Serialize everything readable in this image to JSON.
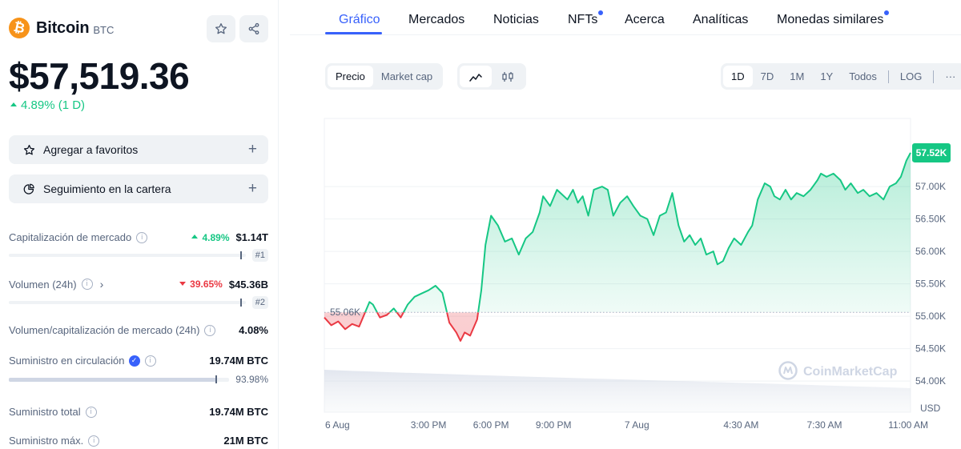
{
  "coin": {
    "name": "Bitcoin",
    "symbol": "BTC",
    "logo_glyph": "₿",
    "price": "$57,519.36",
    "change": "4.89% (1 D)"
  },
  "icons": {
    "star": "star-icon",
    "share": "share-icon",
    "pie": "pie-chart-icon",
    "line": "line-chart-icon",
    "candle": "candlestick-icon"
  },
  "actions": [
    {
      "label": "Agregar a favoritos"
    },
    {
      "label": "Seguimiento en la cartera"
    }
  ],
  "stats": {
    "market_cap": {
      "label": "Capitalización de mercado",
      "pct": "4.89%",
      "value": "$1.14T",
      "rank": "#1",
      "marker": 0.98
    },
    "volume": {
      "label": "Volumen (24h)",
      "pct": "39.65%",
      "value": "$45.36B",
      "rank": "#2",
      "marker": 0.98
    },
    "vol_mcap": {
      "label": "Volumen/capitalización de mercado (24h)",
      "value": "4.08%"
    },
    "circulating": {
      "label": "Suministro en circulación",
      "value": "19.74M BTC",
      "pct": "93.98%",
      "marker": 0.9398
    },
    "total": {
      "label": "Suministro total",
      "value": "19.74M BTC"
    },
    "max": {
      "label": "Suministro máx.",
      "value": "21M BTC"
    }
  },
  "tabs": [
    {
      "label": "Gráfico",
      "active": true
    },
    {
      "label": "Mercados"
    },
    {
      "label": "Noticias"
    },
    {
      "label": "NFTs",
      "dot": true
    },
    {
      "label": "Acerca"
    },
    {
      "label": "Analíticas"
    },
    {
      "label": "Monedas similares",
      "dot": true
    }
  ],
  "toggles": {
    "metric": [
      "Precio",
      "Market cap"
    ],
    "ranges": [
      "1D",
      "7D",
      "1M",
      "1Y",
      "Todos"
    ],
    "log": "LOG",
    "more": "···"
  },
  "colors": {
    "accent": "#3861fb",
    "up": "#16c784",
    "down": "#ea3943",
    "bitcoin": "#f7931a"
  },
  "chart_data": {
    "type": "line",
    "series": [
      {
        "values": [
          [
            0.0,
            54.98
          ],
          [
            1.0,
            54.86
          ],
          [
            2.0,
            54.92
          ],
          [
            3.0,
            54.8
          ],
          [
            4.0,
            54.88
          ],
          [
            5.0,
            54.84
          ],
          [
            6.5,
            55.22
          ],
          [
            7.0,
            55.18
          ],
          [
            8.0,
            54.98
          ],
          [
            9.0,
            55.02
          ],
          [
            10.0,
            55.12
          ],
          [
            11.0,
            54.98
          ],
          [
            12.0,
            55.18
          ],
          [
            13.0,
            55.3
          ],
          [
            14.0,
            55.35
          ],
          [
            15.0,
            55.4
          ],
          [
            16.0,
            55.47
          ],
          [
            17.0,
            55.36
          ],
          [
            18.0,
            54.9
          ],
          [
            19.0,
            54.75
          ],
          [
            19.6,
            54.62
          ],
          [
            20.2,
            54.75
          ],
          [
            21.0,
            54.7
          ],
          [
            22.0,
            54.95
          ],
          [
            22.6,
            55.4
          ],
          [
            23.2,
            56.1
          ],
          [
            24.0,
            56.55
          ],
          [
            25.0,
            56.4
          ],
          [
            26.0,
            56.15
          ],
          [
            27.0,
            56.2
          ],
          [
            28.0,
            55.95
          ],
          [
            29.0,
            56.2
          ],
          [
            30.0,
            56.3
          ],
          [
            31.0,
            56.6
          ],
          [
            31.5,
            56.85
          ],
          [
            32.5,
            56.7
          ],
          [
            33.5,
            56.95
          ],
          [
            34.5,
            56.85
          ],
          [
            35.0,
            56.8
          ],
          [
            35.8,
            56.95
          ],
          [
            36.5,
            56.75
          ],
          [
            37.2,
            56.85
          ],
          [
            38.0,
            56.55
          ],
          [
            38.8,
            56.95
          ],
          [
            40.0,
            57.0
          ],
          [
            40.8,
            56.95
          ],
          [
            41.6,
            56.55
          ],
          [
            42.6,
            56.75
          ],
          [
            43.6,
            56.85
          ],
          [
            44.5,
            56.7
          ],
          [
            45.5,
            56.55
          ],
          [
            46.5,
            56.5
          ],
          [
            47.4,
            56.25
          ],
          [
            48.3,
            56.55
          ],
          [
            49.2,
            56.6
          ],
          [
            50.1,
            56.9
          ],
          [
            51.0,
            56.4
          ],
          [
            51.8,
            56.15
          ],
          [
            52.6,
            56.25
          ],
          [
            53.4,
            56.1
          ],
          [
            54.2,
            56.2
          ],
          [
            55.0,
            55.95
          ],
          [
            56.0,
            56.0
          ],
          [
            56.6,
            55.8
          ],
          [
            57.4,
            55.85
          ],
          [
            58.2,
            56.05
          ],
          [
            59.0,
            56.2
          ],
          [
            60.0,
            56.1
          ],
          [
            61.0,
            56.3
          ],
          [
            61.6,
            56.4
          ],
          [
            62.4,
            56.8
          ],
          [
            63.4,
            57.05
          ],
          [
            64.2,
            57.0
          ],
          [
            64.8,
            56.85
          ],
          [
            65.6,
            56.8
          ],
          [
            66.4,
            56.95
          ],
          [
            67.2,
            56.8
          ],
          [
            68.0,
            56.9
          ],
          [
            69.0,
            56.85
          ],
          [
            70.0,
            56.95
          ],
          [
            71.0,
            57.1
          ],
          [
            71.5,
            57.2
          ],
          [
            72.3,
            57.15
          ],
          [
            73.3,
            57.2
          ],
          [
            74.3,
            57.1
          ],
          [
            75.0,
            56.95
          ],
          [
            75.8,
            57.05
          ],
          [
            76.8,
            56.9
          ],
          [
            77.6,
            56.95
          ],
          [
            78.5,
            56.85
          ],
          [
            79.5,
            56.9
          ],
          [
            80.5,
            56.8
          ],
          [
            81.4,
            57.0
          ],
          [
            82.3,
            57.05
          ],
          [
            83.0,
            57.15
          ],
          [
            83.8,
            57.4
          ],
          [
            84.4,
            57.52
          ]
        ]
      }
    ],
    "reference_value": 55.06,
    "reference_label": "55.06K",
    "last_label": "57.52K",
    "y_ticks": [
      54.0,
      54.5,
      55.0,
      55.5,
      56.0,
      56.5,
      57.0
    ],
    "y_tick_labels": [
      "54.00K",
      "54.50K",
      "55.00K",
      "55.50K",
      "56.00K",
      "56.50K",
      "57.00K"
    ],
    "ylim": [
      53.52,
      58.05
    ],
    "ylabel": "USD",
    "x_ticks": [
      0,
      15,
      24,
      33,
      45,
      60,
      72,
      84
    ],
    "x_tick_labels": [
      "6 Aug",
      "3:00 PM",
      "6:00 PM",
      "9:00 PM",
      "7 Aug",
      "4:30 AM",
      "7:30 AM",
      "11:00 AM"
    ],
    "xlim": [
      0,
      84.4
    ],
    "watermark": "CoinMarketCap"
  }
}
